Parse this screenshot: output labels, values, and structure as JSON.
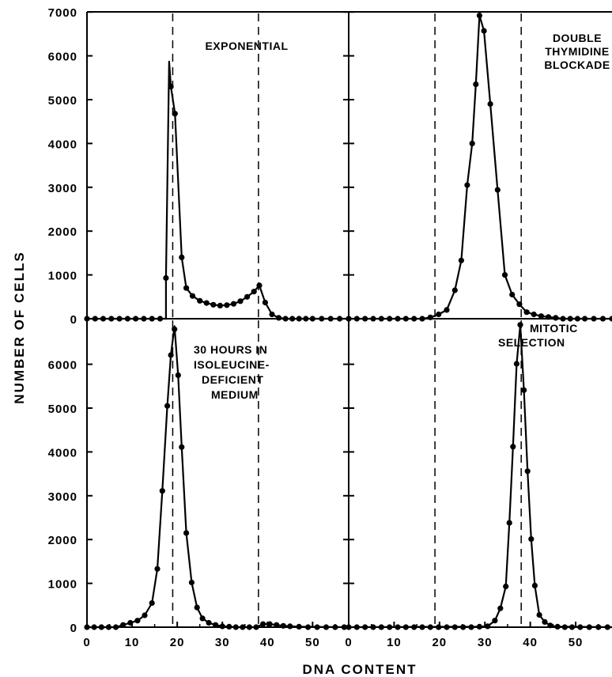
{
  "chart_data": {
    "type": "scatter",
    "xlabel": "DNA CONTENT",
    "ylabel": "NUMBER OF CELLS",
    "x_ticks": [
      "0",
      "10",
      "20",
      "30",
      "40",
      "50"
    ],
    "y_ticks_top": [
      "0",
      "1000",
      "2000",
      "3000",
      "4000",
      "5000",
      "6000",
      "7000"
    ],
    "y_ticks_bottom": [
      "0",
      "1000",
      "2000",
      "3000",
      "4000",
      "5000",
      "6000"
    ],
    "xlim": [
      0,
      58
    ],
    "ylim": [
      0,
      7000
    ],
    "reference_lines_x": [
      19,
      38
    ],
    "panels": [
      {
        "id": "exponential",
        "label_lines": [
          "EXPONENTIAL"
        ],
        "x": [
          0,
          1.8,
          3.6,
          5.4,
          7.2,
          9,
          10.8,
          12.6,
          14.4,
          16.2,
          17.5,
          18.6,
          19.5,
          21,
          22,
          23.4,
          25,
          26.5,
          28,
          29.5,
          31,
          32.5,
          34,
          35.5,
          37,
          38.2,
          39.5,
          41,
          42.5,
          44,
          45.5,
          47,
          48.5,
          50,
          52,
          54,
          56,
          58
        ],
        "y": [
          0,
          0,
          0,
          0,
          0,
          0,
          0,
          0,
          0,
          0,
          930,
          5300,
          4680,
          1400,
          700,
          520,
          410,
          360,
          320,
          300,
          310,
          340,
          400,
          500,
          620,
          760,
          370,
          100,
          20,
          0,
          0,
          0,
          0,
          0,
          0,
          0,
          0,
          0
        ],
        "curve_x": [
          0,
          17.5,
          17.5,
          18.2,
          18.6,
          19.5,
          21,
          22,
          23.4,
          25,
          26.5,
          28,
          29.5,
          31,
          32.5,
          34,
          35.5,
          37,
          38.2,
          39.5,
          41,
          42.5,
          44,
          58
        ],
        "curve_y": [
          0,
          0,
          930,
          5870,
          5300,
          4680,
          1400,
          700,
          520,
          410,
          360,
          320,
          300,
          310,
          340,
          400,
          500,
          620,
          760,
          370,
          100,
          20,
          0,
          0
        ]
      },
      {
        "id": "double-thymidine",
        "label_lines": [
          "DOUBLE",
          "THYMIDINE",
          "BLOCKADE"
        ],
        "x": [
          0,
          1.8,
          3.6,
          5.4,
          7.2,
          9,
          10.8,
          12.6,
          14.4,
          16.2,
          18,
          19.8,
          21.6,
          23.4,
          24.8,
          26.1,
          27.2,
          28,
          28.8,
          29.8,
          31.2,
          32.8,
          34.4,
          36,
          37.6,
          39.2,
          40.8,
          42.4,
          44,
          45.6,
          47.2,
          48.8,
          50.4,
          52,
          54,
          56,
          58
        ],
        "y": [
          0,
          0,
          0,
          0,
          0,
          0,
          0,
          0,
          0,
          0,
          30,
          100,
          200,
          650,
          1330,
          3050,
          4000,
          5350,
          6920,
          6570,
          4900,
          2940,
          1000,
          550,
          330,
          150,
          100,
          60,
          40,
          20,
          0,
          0,
          0,
          0,
          0,
          0,
          0
        ],
        "curve_x": [
          0,
          16.2,
          18,
          19.8,
          21.6,
          23.4,
          24.8,
          26.1,
          27.2,
          28,
          28.8,
          29.8,
          31.2,
          32.8,
          34.4,
          36,
          37.6,
          39.2,
          40.8,
          42.4,
          44,
          45.6,
          47.2,
          58
        ],
        "curve_y": [
          0,
          0,
          30,
          100,
          200,
          650,
          1330,
          3050,
          4000,
          5350,
          6920,
          6570,
          4900,
          2940,
          1000,
          550,
          330,
          150,
          100,
          60,
          40,
          20,
          0,
          0
        ]
      },
      {
        "id": "isoleucine",
        "label_lines": [
          "30 HOURS IN",
          "ISOLEUCINE-",
          "DEFICIENT",
          "MEDIUM"
        ],
        "x": [
          0,
          1.6,
          3.2,
          4.8,
          6.4,
          8,
          9.6,
          11.2,
          12.8,
          14.4,
          15.6,
          16.7,
          17.8,
          18.6,
          19.4,
          20.2,
          21,
          22,
          23.2,
          24.4,
          25.6,
          27,
          28.5,
          30,
          31.5,
          33,
          34.5,
          36,
          37.5,
          39,
          40.5,
          42,
          43.5,
          45,
          47,
          49,
          51,
          53,
          55,
          57
        ],
        "y": [
          0,
          0,
          0,
          0,
          0,
          50,
          100,
          150,
          270,
          550,
          1330,
          3110,
          5050,
          6210,
          6800,
          5750,
          4110,
          2150,
          1020,
          450,
          200,
          100,
          50,
          20,
          10,
          0,
          0,
          0,
          0,
          70,
          70,
          50,
          30,
          20,
          10,
          0,
          0,
          0,
          0,
          0
        ],
        "curve_x": [
          0,
          6.4,
          8,
          9.6,
          11.2,
          12.8,
          14.4,
          15.6,
          16.7,
          17.8,
          18.6,
          19.4,
          20.2,
          21,
          22,
          23.2,
          24.4,
          25.6,
          27,
          28.5,
          30,
          31.5,
          33,
          37.5,
          39,
          40.5,
          42,
          43.5,
          45,
          47,
          58
        ],
        "curve_y": [
          0,
          0,
          50,
          100,
          150,
          270,
          550,
          1330,
          3110,
          5050,
          6210,
          6870,
          5750,
          4110,
          2150,
          1020,
          450,
          200,
          100,
          50,
          20,
          10,
          0,
          0,
          70,
          70,
          50,
          30,
          20,
          10,
          0
        ]
      },
      {
        "id": "mitotic",
        "label_lines": [
          "MITOTIC",
          "SELECTION"
        ],
        "x": [
          0,
          1.8,
          3.6,
          5.4,
          7.2,
          9,
          10.8,
          12.6,
          14.4,
          16.2,
          18,
          19.8,
          21.6,
          23.4,
          25.2,
          27,
          28.8,
          30.6,
          32.2,
          33.4,
          34.6,
          35.4,
          36.2,
          37,
          37.8,
          38.6,
          39.4,
          40.2,
          41,
          42,
          43.2,
          44.4,
          46,
          47.6,
          49.2,
          51,
          53,
          55,
          57
        ],
        "y": [
          0,
          0,
          0,
          0,
          0,
          0,
          0,
          0,
          0,
          0,
          0,
          0,
          0,
          0,
          0,
          0,
          10,
          20,
          150,
          430,
          930,
          2380,
          4120,
          6010,
          6900,
          5410,
          3560,
          2010,
          950,
          280,
          120,
          40,
          10,
          0,
          0,
          0,
          0,
          0,
          0
        ],
        "curve_x": [
          0,
          28.8,
          30.6,
          32.2,
          33.4,
          34.6,
          35.4,
          36.2,
          37,
          37.8,
          38.6,
          39.4,
          40.2,
          41,
          42,
          43.2,
          44.4,
          46,
          58
        ],
        "curve_y": [
          0,
          10,
          20,
          150,
          430,
          930,
          2380,
          4120,
          6010,
          6900,
          5410,
          3560,
          2010,
          950,
          280,
          120,
          40,
          10,
          0
        ]
      }
    ]
  }
}
